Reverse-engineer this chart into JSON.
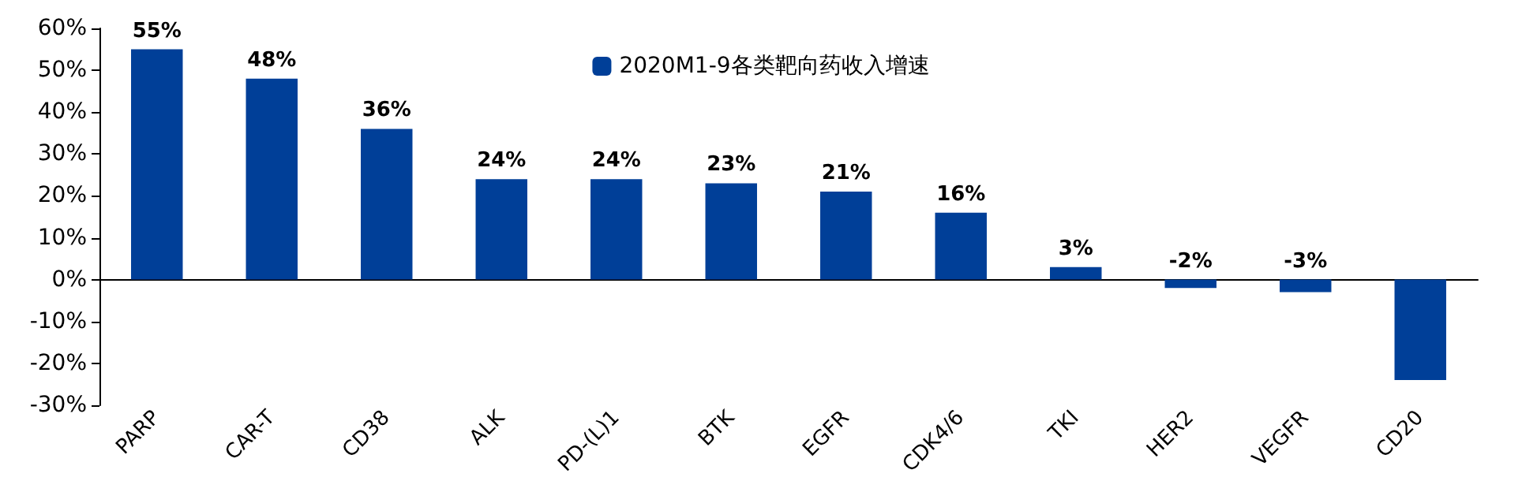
{
  "chart_data": {
    "type": "bar",
    "categories": [
      "PARP",
      "CAR-T",
      "CD38",
      "ALK",
      "PD-(L)1",
      "BTK",
      "EGFR",
      "CDK4/6",
      "TKI",
      "HER2",
      "VEGFR",
      "CD20"
    ],
    "series": [
      {
        "name": "2020M1-9各类靶向药收入增速",
        "color": "#003f98",
        "values": [
          55,
          48,
          36,
          24,
          24,
          23,
          21,
          16,
          3,
          -2,
          -3,
          -24
        ],
        "value_labels": [
          "55%",
          "48%",
          "36%",
          "24%",
          "24%",
          "23%",
          "21%",
          "16%",
          "3%",
          "-2%",
          "-3%",
          null
        ]
      }
    ],
    "ylim": [
      -30,
      60
    ],
    "yticks": [
      {
        "value": -30,
        "label": "-30%"
      },
      {
        "value": -20,
        "label": "-20%"
      },
      {
        "value": -10,
        "label": "-10%"
      },
      {
        "value": 0,
        "label": "0%"
      },
      {
        "value": 10,
        "label": "10%"
      },
      {
        "value": 20,
        "label": "20%"
      },
      {
        "value": 30,
        "label": "30%"
      },
      {
        "value": 40,
        "label": "40%"
      },
      {
        "value": 50,
        "label": "50%"
      },
      {
        "value": 60,
        "label": "60%"
      }
    ],
    "legend": "top"
  }
}
